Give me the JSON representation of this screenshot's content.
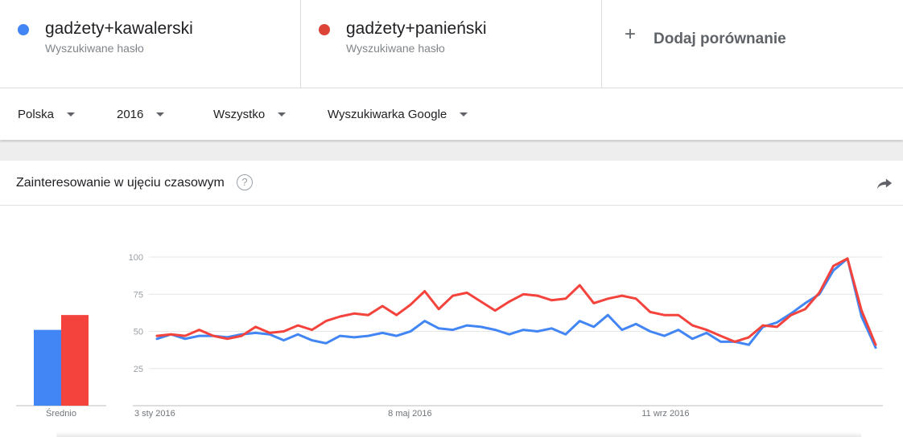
{
  "terms": [
    {
      "name": "gadżety+kawalerski",
      "subtitle": "Wyszukiwane hasło",
      "color": "#4285f4"
    },
    {
      "name": "gadżety+panieński",
      "subtitle": "Wyszukiwane hasło",
      "color": "#db4437"
    }
  ],
  "add_comparison": {
    "label": "Dodaj porównanie",
    "icon": "plus-icon"
  },
  "filters": [
    {
      "label": "Polska"
    },
    {
      "label": "2016"
    },
    {
      "label": "Wszystko"
    },
    {
      "label": "Wyszukiwarka Google"
    }
  ],
  "card": {
    "title": "Zainteresowanie w ujęciu czasowym",
    "help_icon": "help-icon",
    "share_icon": "share-icon"
  },
  "chart_data": {
    "type": "line",
    "average_label": "Średnio",
    "averages": [
      51,
      61
    ],
    "ylim": [
      0,
      100
    ],
    "yticks": [
      25,
      50,
      75,
      100
    ],
    "xtick_labels": [
      "3 sty 2016",
      "8 maj 2016",
      "11 wrz 2016"
    ],
    "xtick_positions": [
      0,
      18,
      36
    ],
    "grid": true,
    "series": [
      {
        "name": "gadżety+kawalerski",
        "color": "#4285f4",
        "values": [
          45,
          48,
          45,
          47,
          47,
          46,
          48,
          49,
          48,
          44,
          48,
          44,
          42,
          47,
          46,
          47,
          49,
          47,
          50,
          57,
          52,
          51,
          54,
          53,
          51,
          48,
          51,
          50,
          52,
          48,
          57,
          53,
          61,
          51,
          55,
          50,
          47,
          51,
          45,
          49,
          43,
          43,
          41,
          53,
          56,
          62,
          69,
          75,
          91,
          99,
          60,
          39
        ]
      },
      {
        "name": "gadżety+panieński",
        "color": "#f4433c",
        "values": [
          47,
          48,
          47,
          51,
          47,
          45,
          47,
          53,
          49,
          50,
          54,
          51,
          57,
          60,
          62,
          61,
          67,
          61,
          68,
          77,
          65,
          74,
          76,
          70,
          64,
          70,
          75,
          74,
          71,
          72,
          81,
          69,
          72,
          74,
          72,
          63,
          61,
          61,
          54,
          51,
          47,
          43,
          46,
          54,
          53,
          61,
          65,
          76,
          94,
          99,
          64,
          41
        ]
      }
    ]
  }
}
